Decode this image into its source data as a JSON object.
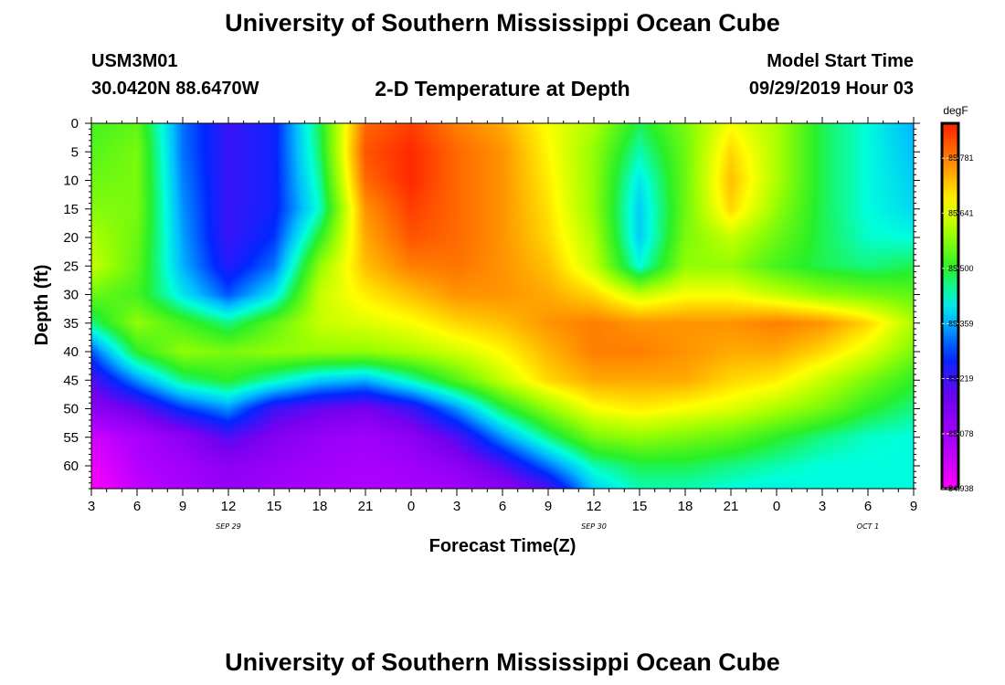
{
  "header": {
    "title_top": "University of Southern Mississippi Ocean Cube",
    "title_bottom": "University of Southern Mississippi Ocean Cube",
    "station_id": "USM3M01",
    "coordinates": "30.0420N 88.6470W",
    "plot_title": "2-D Temperature at Depth",
    "model_start_label": "Model Start Time",
    "model_start_value": "09/29/2019 Hour 03"
  },
  "chart_data": {
    "type": "heatmap",
    "title": "2-D Temperature at Depth",
    "xlabel": "Forecast Time(Z)",
    "ylabel": "Depth (ft)",
    "x_ticks": [
      "3",
      "6",
      "9",
      "12",
      "15",
      "18",
      "21",
      "0",
      "3",
      "6",
      "9",
      "12",
      "15",
      "18",
      "21",
      "0",
      "3",
      "6",
      "9"
    ],
    "x_range_hours": [
      0,
      54
    ],
    "day_labels": [
      {
        "label": "SEP 29",
        "at_hour": 9
      },
      {
        "label": "SEP 30",
        "at_hour": 33
      },
      {
        "label": "OCT 1",
        "at_hour": 51
      }
    ],
    "y_ticks": [
      0,
      5,
      10,
      15,
      20,
      25,
      30,
      35,
      40,
      45,
      50,
      55,
      60
    ],
    "ylim": [
      0,
      64
    ],
    "y_inverted": true,
    "colorbar": {
      "unit": "degF",
      "range": [
        84.938,
        85.87
      ],
      "labels": [
        "85.781",
        "85.641",
        "85.500",
        "85.359",
        "85.219",
        "85.078",
        "84.938"
      ],
      "label_values": [
        85.781,
        85.641,
        85.5,
        85.359,
        85.219,
        85.078,
        84.938
      ]
    },
    "time_hours": [
      0,
      3,
      6,
      9,
      12,
      15,
      18,
      21,
      24,
      27,
      30,
      33,
      36,
      39,
      42,
      45,
      48,
      51,
      54
    ],
    "depths_ft": [
      0,
      5,
      10,
      15,
      20,
      25,
      30,
      35,
      40,
      45,
      50,
      55,
      60,
      64
    ],
    "temperature_degF": [
      [
        85.52,
        85.54,
        85.32,
        85.22,
        85.26,
        85.48,
        85.8,
        85.84,
        85.78,
        85.74,
        85.66,
        85.6,
        85.48,
        85.56,
        85.66,
        85.6,
        85.48,
        85.42,
        85.36
      ],
      [
        85.53,
        85.56,
        85.32,
        85.22,
        85.26,
        85.47,
        85.82,
        85.86,
        85.8,
        85.76,
        85.67,
        85.58,
        85.44,
        85.55,
        85.7,
        85.6,
        85.48,
        85.42,
        85.37
      ],
      [
        85.55,
        85.56,
        85.33,
        85.22,
        85.26,
        85.45,
        85.8,
        85.86,
        85.8,
        85.76,
        85.68,
        85.58,
        85.4,
        85.55,
        85.72,
        85.6,
        85.48,
        85.42,
        85.38
      ],
      [
        85.57,
        85.56,
        85.34,
        85.22,
        85.26,
        85.43,
        85.76,
        85.84,
        85.8,
        85.76,
        85.69,
        85.58,
        85.38,
        85.55,
        85.7,
        85.58,
        85.48,
        85.42,
        85.39
      ],
      [
        85.6,
        85.55,
        85.35,
        85.22,
        85.28,
        85.5,
        85.74,
        85.82,
        85.8,
        85.76,
        85.7,
        85.6,
        85.38,
        85.56,
        85.62,
        85.55,
        85.48,
        85.43,
        85.42
      ],
      [
        85.62,
        85.54,
        85.36,
        85.24,
        85.32,
        85.58,
        85.72,
        85.78,
        85.79,
        85.76,
        85.72,
        85.62,
        85.42,
        85.58,
        85.58,
        85.52,
        85.48,
        85.46,
        85.48
      ],
      [
        85.55,
        85.52,
        85.4,
        85.3,
        85.4,
        85.62,
        85.68,
        85.72,
        85.76,
        85.76,
        85.74,
        85.7,
        85.62,
        85.66,
        85.66,
        85.62,
        85.58,
        85.56,
        85.54
      ],
      [
        85.46,
        85.58,
        85.52,
        85.46,
        85.54,
        85.62,
        85.64,
        85.66,
        85.7,
        85.72,
        85.76,
        85.78,
        85.76,
        85.76,
        85.76,
        85.78,
        85.76,
        85.7,
        85.6
      ],
      [
        85.3,
        85.5,
        85.58,
        85.56,
        85.58,
        85.58,
        85.58,
        85.6,
        85.63,
        85.67,
        85.73,
        85.78,
        85.78,
        85.76,
        85.74,
        85.74,
        85.7,
        85.64,
        85.56
      ],
      [
        85.2,
        85.34,
        85.46,
        85.5,
        85.44,
        85.38,
        85.36,
        85.44,
        85.53,
        85.62,
        85.7,
        85.74,
        85.74,
        85.74,
        85.7,
        85.68,
        85.62,
        85.56,
        85.5
      ],
      [
        85.12,
        85.18,
        85.28,
        85.34,
        85.22,
        85.18,
        85.16,
        85.22,
        85.34,
        85.48,
        85.58,
        85.66,
        85.68,
        85.66,
        85.64,
        85.6,
        85.56,
        85.5,
        85.46
      ],
      [
        85.0,
        85.06,
        85.12,
        85.2,
        85.14,
        85.1,
        85.08,
        85.12,
        85.2,
        85.34,
        85.46,
        85.56,
        85.58,
        85.56,
        85.54,
        85.5,
        85.46,
        85.43,
        85.42
      ],
      [
        84.96,
        85.04,
        85.08,
        85.12,
        85.1,
        85.08,
        85.06,
        85.08,
        85.12,
        85.2,
        85.32,
        85.44,
        85.48,
        85.48,
        85.46,
        85.44,
        85.42,
        85.42,
        85.42
      ],
      [
        84.94,
        85.02,
        85.06,
        85.1,
        85.08,
        85.06,
        85.05,
        85.06,
        85.08,
        85.12,
        85.2,
        85.38,
        85.44,
        85.44,
        85.42,
        85.41,
        85.42,
        85.42,
        85.42
      ]
    ]
  }
}
